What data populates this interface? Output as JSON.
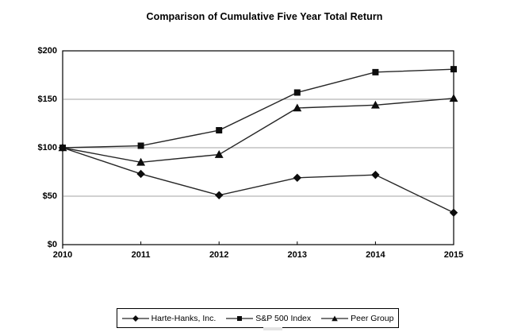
{
  "title": "Comparison of Cumulative Five Year Total Return",
  "chart_data": {
    "type": "line",
    "x": [
      2010,
      2011,
      2012,
      2013,
      2014,
      2015
    ],
    "xtick_labels": [
      "2010",
      "2011",
      "2012",
      "2013",
      "2014",
      "2015"
    ],
    "ytick_labels": [
      "$0",
      "$50",
      "$100",
      "$150",
      "$200"
    ],
    "ytick_values": [
      0,
      50,
      100,
      150,
      200
    ],
    "ylim": [
      0,
      200
    ],
    "grid": "horizontal",
    "grid_values": [
      50,
      100,
      150
    ],
    "legend_position": "bottom",
    "series": [
      {
        "name": "Harte-Hanks, Inc.",
        "marker": "diamond",
        "values": [
          100,
          73,
          51,
          69,
          72,
          33
        ]
      },
      {
        "name": "S&P 500 Index",
        "marker": "square",
        "values": [
          100,
          102,
          118,
          157,
          178,
          181
        ]
      },
      {
        "name": "Peer Group",
        "marker": "triangle",
        "values": [
          100,
          85,
          93,
          141,
          144,
          151
        ]
      }
    ],
    "colors": {
      "line": "#262626",
      "marker": "#0d0d0d",
      "grid": "#a3a3a3",
      "axis": "#000000",
      "text": "#000000"
    }
  }
}
